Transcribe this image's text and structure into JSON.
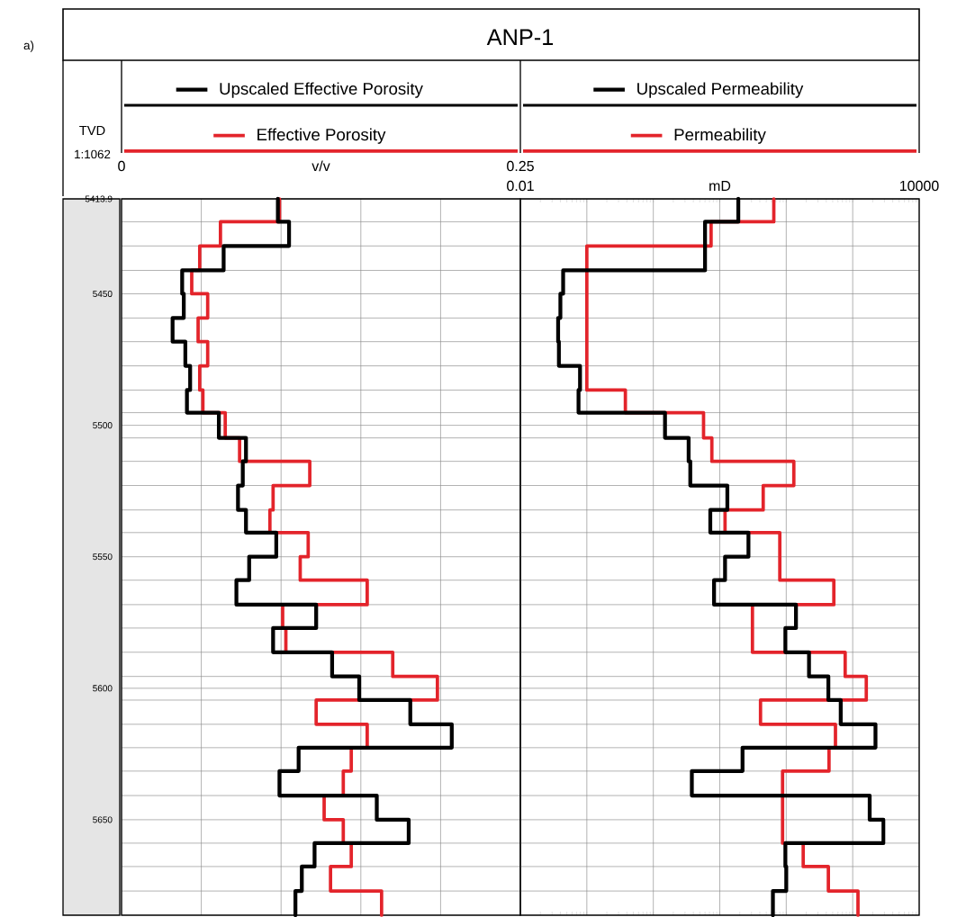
{
  "chart_data": [
    {
      "type": "step",
      "orientation": "horizontal",
      "title": "ANP-1",
      "ylabel": "TVD",
      "xlabel": "v/v",
      "annotations": [
        "a)",
        "1:1062"
      ],
      "legend": "top",
      "grid": true,
      "x": [
        5413.9,
        5422.6,
        5431.8,
        5441.1,
        5450,
        5459.2,
        5468.2,
        5477.4,
        5486.6,
        5495.2,
        5504.8,
        5513.7,
        5522.9,
        5532.2,
        5540.8,
        5550,
        5558.9,
        5568.2,
        5577.1,
        5586.3,
        5595.5,
        5604.5,
        5613.7,
        5622.6,
        5631.5,
        5640.8,
        5650,
        5658.9,
        5667.8,
        5677.1,
        5686.3
      ],
      "xlim": [
        0,
        0.25
      ],
      "xticks": [
        0,
        {
          "value": 0.05,
          "label": null
        },
        {
          "value": 0.1,
          "label": null
        },
        {
          "value": 0.15,
          "label": null
        },
        {
          "value": 0.2,
          "label": null
        },
        0.25
      ],
      "ylim": [
        5686.3,
        5413.9
      ],
      "yticks": [
        5413.9,
        5450,
        5500,
        5550,
        5600,
        5650,
        {
          "value": 5422.6,
          "label": null
        },
        {
          "value": 5431.8,
          "label": null
        },
        {
          "value": 5441.1,
          "label": null
        },
        {
          "value": 5459.2,
          "label": null
        },
        {
          "value": 5468.2,
          "label": null
        },
        {
          "value": 5477.4,
          "label": null
        },
        {
          "value": 5486.6,
          "label": null
        },
        {
          "value": 5495.2,
          "label": null
        },
        {
          "value": 5504.8,
          "label": null
        },
        {
          "value": 5513.7,
          "label": null
        },
        {
          "value": 5522.9,
          "label": null
        },
        {
          "value": 5532.2,
          "label": null
        },
        {
          "value": 5540.8,
          "label": null
        },
        {
          "value": 5558.9,
          "label": null
        },
        {
          "value": 5568.2,
          "label": null
        },
        {
          "value": 5577.1,
          "label": null
        },
        {
          "value": 5586.3,
          "label": null
        },
        {
          "value": 5595.5,
          "label": null
        },
        {
          "value": 5604.5,
          "label": null
        },
        {
          "value": 5613.7,
          "label": null
        },
        {
          "value": 5622.6,
          "label": null
        },
        {
          "value": 5631.5,
          "label": null
        },
        {
          "value": 5640.8,
          "label": null
        },
        {
          "value": 5658.9,
          "label": null
        },
        {
          "value": 5667.8,
          "label": null
        },
        {
          "value": 5677.1,
          "label": null
        }
      ],
      "series": [
        {
          "name": "Upscaled Effective Porosity",
          "color": "#000000",
          "values": [
            0.098,
            0.105,
            0.064,
            0.038,
            0.039,
            0.032,
            0.04,
            0.043,
            0.041,
            0.061,
            0.078,
            0.076,
            0.073,
            0.078,
            0.097,
            0.08,
            0.072,
            0.122,
            0.095,
            0.132,
            0.149,
            0.181,
            0.207,
            0.111,
            0.099,
            0.16,
            0.18,
            0.121,
            0.113,
            0.109,
            0.109
          ]
        },
        {
          "name": "Effective Porosity",
          "color": "#e3242b",
          "values": [
            0.099,
            0.062,
            0.049,
            0.044,
            0.054,
            0.048,
            0.054,
            0.049,
            0.051,
            0.065,
            0.074,
            0.118,
            0.095,
            0.093,
            0.117,
            0.112,
            0.154,
            0.101,
            0.103,
            0.17,
            0.198,
            0.122,
            0.154,
            0.144,
            0.139,
            0.127,
            0.139,
            0.144,
            0.131,
            0.163,
            0.163
          ]
        }
      ]
    },
    {
      "type": "step",
      "orientation": "horizontal",
      "xlabel": "mD",
      "legend": "top",
      "grid": true,
      "log": "x",
      "tick_labels": "x",
      "x": [
        5413.9,
        5422.6,
        5431.8,
        5441.1,
        5450,
        5459.2,
        5468.2,
        5477.4,
        5486.6,
        5495.2,
        5504.8,
        5513.7,
        5522.9,
        5532.2,
        5540.8,
        5550,
        5558.9,
        5568.2,
        5577.1,
        5586.3,
        5595.5,
        5604.5,
        5613.7,
        5622.6,
        5631.5,
        5640.8,
        5650,
        5658.9,
        5667.8,
        5677.1,
        5686.3
      ],
      "xlim": [
        0.01,
        10000
      ],
      "xticks": [
        0.01,
        {
          "value": 0.1,
          "label": null
        },
        {
          "value": 1,
          "label": null
        },
        {
          "value": 10,
          "label": null
        },
        {
          "value": 100,
          "label": null
        },
        {
          "value": 1000,
          "label": null
        },
        10000
      ],
      "ylim": [
        5686.3,
        5413.9
      ],
      "yticks": [
        5413.9,
        5450,
        5500,
        5550,
        5600,
        5650,
        {
          "value": 5422.6,
          "label": null
        },
        {
          "value": 5431.8,
          "label": null
        },
        {
          "value": 5441.1,
          "label": null
        },
        {
          "value": 5459.2,
          "label": null
        },
        {
          "value": 5468.2,
          "label": null
        },
        {
          "value": 5477.4,
          "label": null
        },
        {
          "value": 5486.6,
          "label": null
        },
        {
          "value": 5495.2,
          "label": null
        },
        {
          "value": 5504.8,
          "label": null
        },
        {
          "value": 5513.7,
          "label": null
        },
        {
          "value": 5522.9,
          "label": null
        },
        {
          "value": 5532.2,
          "label": null
        },
        {
          "value": 5540.8,
          "label": null
        },
        {
          "value": 5558.9,
          "label": null
        },
        {
          "value": 5568.2,
          "label": null
        },
        {
          "value": 5577.1,
          "label": null
        },
        {
          "value": 5586.3,
          "label": null
        },
        {
          "value": 5595.5,
          "label": null
        },
        {
          "value": 5604.5,
          "label": null
        },
        {
          "value": 5613.7,
          "label": null
        },
        {
          "value": 5622.6,
          "label": null
        },
        {
          "value": 5631.5,
          "label": null
        },
        {
          "value": 5640.8,
          "label": null
        },
        {
          "value": 5658.9,
          "label": null
        },
        {
          "value": 5667.8,
          "label": null
        },
        {
          "value": 5677.1,
          "label": null
        }
      ],
      "series": [
        {
          "name": "Upscaled Permeability",
          "color": "#000000",
          "values": [
            19,
            6.0,
            6.0,
            0.044,
            0.04,
            0.037,
            0.038,
            0.079,
            0.075,
            1.5,
            3.4,
            3.6,
            13,
            7.2,
            27,
            12,
            8.2,
            140,
            97,
            220,
            430,
            660,
            2200,
            22,
            3.8,
            1800,
            2900,
            97,
            100,
            63,
            63
          ]
        },
        {
          "name": "Permeability",
          "color": "#e3242b",
          "values": [
            65,
            7.4,
            0.1,
            0.1,
            0.1,
            0.1,
            0.1,
            0.1,
            0.38,
            5.7,
            7.6,
            130,
            45,
            12,
            80,
            80,
            520,
            31,
            31,
            770,
            1600,
            41,
            550,
            440,
            88,
            88,
            88,
            180,
            430,
            1200,
            1200
          ]
        }
      ]
    }
  ]
}
